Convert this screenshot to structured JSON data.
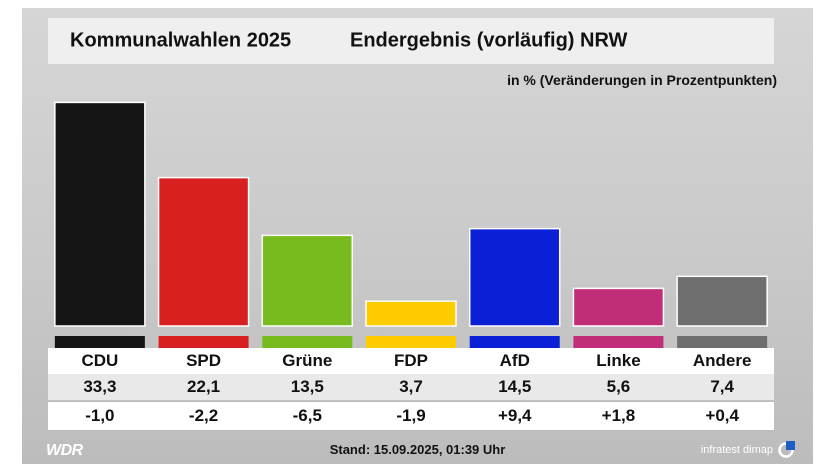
{
  "header": {
    "title_left": "Kommunalwahlen 2025",
    "title_right": "Endergebnis (vorläufig) NRW",
    "unit_note": "in % (Veränderungen in Prozentpunkten)"
  },
  "footer": {
    "brand": "WDR",
    "stand": "Stand: 15.09.2025, 01:39 Uhr",
    "source": "infratest dimap"
  },
  "chart_data": {
    "type": "bar",
    "categories": [
      "CDU",
      "SPD",
      "Grüne",
      "FDP",
      "AfD",
      "Linke",
      "Andere"
    ],
    "values": [
      33.3,
      22.1,
      13.5,
      3.7,
      14.5,
      5.6,
      7.4
    ],
    "value_labels": [
      "33,3",
      "22,1",
      "13,5",
      "3,7",
      "14,5",
      "5,6",
      "7,4"
    ],
    "changes": [
      "-1,0",
      "-2,2",
      "-6,5",
      "-1,9",
      "+9,4",
      "+1,8",
      "+0,4"
    ],
    "colors": [
      "#141414",
      "#d92020",
      "#77bb1e",
      "#ffcc00",
      "#0a1fd6",
      "#c22d7a",
      "#6e6e6e"
    ],
    "ylim": [
      0,
      35
    ],
    "grid": false,
    "legend": "none"
  }
}
